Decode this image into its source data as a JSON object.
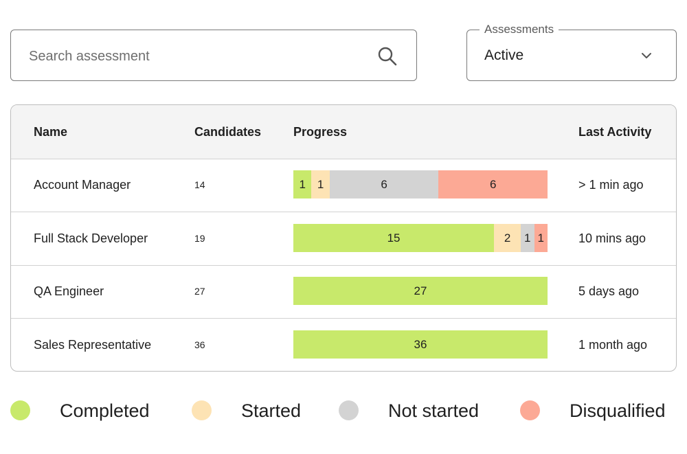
{
  "search": {
    "placeholder": "Search assessment",
    "icon": "search-icon"
  },
  "assessments_select": {
    "label": "Assessments",
    "value": "Active",
    "icon": "chevron-down-icon"
  },
  "table": {
    "headers": {
      "name": "Name",
      "candidates": "Candidates",
      "progress": "Progress",
      "last_activity": "Last Activity"
    },
    "rows": [
      {
        "name": "Account Manager",
        "candidates": "14",
        "progress": {
          "completed": 1,
          "started": 1,
          "not_started": 6,
          "disqualified": 6
        },
        "last_activity": "> 1 min ago"
      },
      {
        "name": "Full Stack Developer",
        "candidates": "19",
        "progress": {
          "completed": 15,
          "started": 2,
          "not_started": 1,
          "disqualified": 1
        },
        "last_activity": "10 mins ago"
      },
      {
        "name": "QA Engineer",
        "candidates": "27",
        "progress": {
          "completed": 27,
          "started": 0,
          "not_started": 0,
          "disqualified": 0
        },
        "last_activity": "5 days ago"
      },
      {
        "name": "Sales Representative",
        "candidates": "36",
        "progress": {
          "completed": 36,
          "started": 0,
          "not_started": 0,
          "disqualified": 0
        },
        "last_activity": "1 month ago"
      }
    ]
  },
  "legend": [
    {
      "key": "completed",
      "label": "Completed",
      "color": "#c8e96b"
    },
    {
      "key": "started",
      "label": "Started",
      "color": "#fde3b4"
    },
    {
      "key": "not_started",
      "label": "Not started",
      "color": "#d3d3d3"
    },
    {
      "key": "disqualified",
      "label": "Disqualified",
      "color": "#fca995"
    }
  ]
}
